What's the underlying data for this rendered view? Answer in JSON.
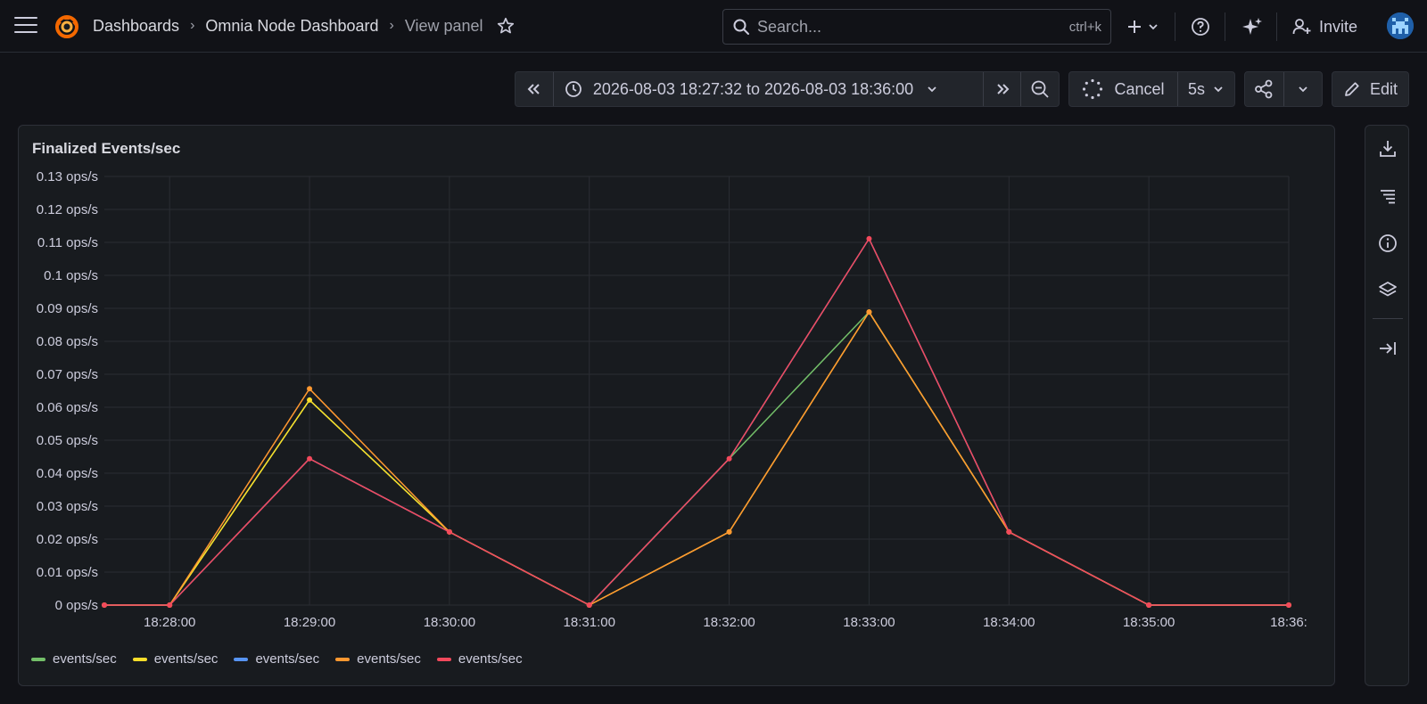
{
  "nav": {
    "breadcrumbs": [
      "Dashboards",
      "Omnia Node Dashboard",
      "View panel"
    ],
    "search_placeholder": "Search...",
    "search_shortcut": "ctrl+k",
    "invite_label": "Invite",
    "icons": [
      "menu-icon",
      "grafana-logo",
      "star-icon",
      "search-icon",
      "plus-icon",
      "help-icon",
      "ai-sparkle-icon",
      "user-plus-icon"
    ]
  },
  "toolbar": {
    "time_range": "2026-08-03 18:27:32 to 2026-08-03 18:36:00",
    "cancel_label": "Cancel",
    "refresh_interval": "5s",
    "edit_label": "Edit"
  },
  "panel": {
    "title": "Finalized Events/sec"
  },
  "chart_data": {
    "type": "line",
    "x": [
      "18:27:32",
      "18:28:00",
      "18:29:00",
      "18:30:00",
      "18:31:00",
      "18:32:00",
      "18:33:00",
      "18:34:00",
      "18:35:00",
      "18:36:00"
    ],
    "x_tick_labels": [
      "18:28:00",
      "18:29:00",
      "18:30:00",
      "18:31:00",
      "18:32:00",
      "18:33:00",
      "18:34:00",
      "18:35:00",
      "18:36:"
    ],
    "y_tick_labels": [
      "0 ops/s",
      "0.01 ops/s",
      "0.02 ops/s",
      "0.03 ops/s",
      "0.04 ops/s",
      "0.05 ops/s",
      "0.06 ops/s",
      "0.07 ops/s",
      "0.08 ops/s",
      "0.09 ops/s",
      "0.1 ops/s",
      "0.11 ops/s",
      "0.12 ops/s",
      "0.13 ops/s"
    ],
    "ylim": [
      0,
      0.13
    ],
    "unit": "ops/s",
    "grid": true,
    "legend_position": "bottom-left",
    "series": [
      {
        "name": "events/sec",
        "color": "#73bf69",
        "values": [
          0,
          0,
          0.0622,
          0.0222,
          0,
          0.0444,
          0.0889,
          0.0222,
          0,
          0
        ],
        "markers": false
      },
      {
        "name": "events/sec",
        "color": "#fade2a",
        "values": [
          0,
          0,
          0.0622,
          0.0222,
          0,
          0.0222,
          0.0889,
          0.0222,
          0,
          0
        ],
        "markers": true
      },
      {
        "name": "events/sec",
        "color": "#5794f2",
        "values": [
          0,
          0,
          0.0444,
          0.0222,
          0,
          0.0444,
          0.1111,
          0.0222,
          0,
          0
        ],
        "markers": false
      },
      {
        "name": "events/sec",
        "color": "#ff9830",
        "values": [
          0,
          0,
          0.0656,
          0.0222,
          0,
          0.0222,
          0.0889,
          0.0222,
          0,
          0
        ],
        "markers": true
      },
      {
        "name": "events/sec",
        "color": "#f2495c",
        "values": [
          0,
          0,
          0.0444,
          0.0222,
          0,
          0.0444,
          0.1111,
          0.0222,
          0,
          0
        ],
        "markers": true
      }
    ]
  },
  "side_pane": {
    "icons": [
      "download-icon",
      "list-icon",
      "info-icon",
      "layers-icon",
      "collapse-right-icon"
    ]
  }
}
